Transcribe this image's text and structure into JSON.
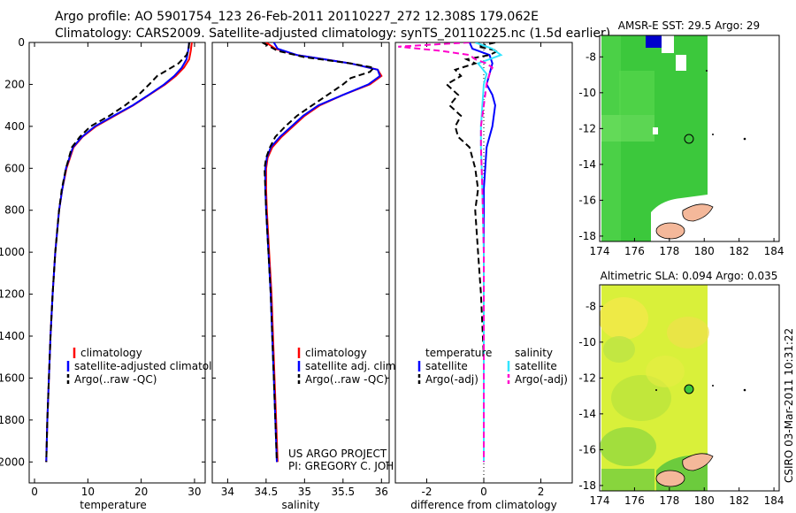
{
  "header": {
    "line1": "Argo profile: AO 5901754_123 26-Feb-2011 20110227_272 12.308S 179.062E",
    "line2": "Climatology: CARS2009. Satellite-adjusted climatology: synTS_20110225.nc (1.5d earlier)"
  },
  "colors": {
    "climatology": "#ff0000",
    "satellite": "#0000ff",
    "argo": "#000000",
    "sal_satellite": "#33e5ff",
    "sal_argo": "#ff00cc",
    "sst_green": "#3cc83c",
    "sst_land": "#f4b89a"
  },
  "footer": {
    "credit_line1": "US ARGO PROJECT",
    "credit_line2": "PI: GREGORY C. JOHNSON",
    "stamp": "CSIRO 03-Mar-2011 10:31:22"
  },
  "chart_data": [
    {
      "type": "line",
      "xlabel": "temperature",
      "xlim": [
        -1,
        32
      ],
      "ylim": [
        0,
        2100
      ],
      "xticks": [
        0,
        10,
        20,
        30
      ],
      "yticks": [
        0,
        200,
        400,
        600,
        800,
        1000,
        1200,
        1400,
        1600,
        1800,
        2000
      ],
      "legend": [
        "climatology",
        "satellite-adjusted climatology",
        "Argo(..raw -QC)"
      ],
      "series": [
        {
          "name": "climatology",
          "depth": [
            0,
            40,
            80,
            120,
            160,
            200,
            250,
            300,
            350,
            400,
            450,
            500,
            600,
            700,
            800,
            1000,
            1200,
            1400,
            1600,
            1800,
            2000
          ],
          "values": [
            29.5,
            29.3,
            29.0,
            28.0,
            26.5,
            24.5,
            21.5,
            18.5,
            15.0,
            11.5,
            9.0,
            7.3,
            6.0,
            5.2,
            4.6,
            3.9,
            3.4,
            3.0,
            2.7,
            2.4,
            2.2
          ]
        },
        {
          "name": "satellite",
          "depth": [
            0,
            40,
            80,
            120,
            160,
            200,
            250,
            300,
            350,
            400,
            450,
            500,
            600,
            700,
            800,
            1000,
            1200,
            1400,
            1600,
            1800,
            2000
          ],
          "values": [
            29.0,
            28.8,
            28.5,
            27.6,
            26.2,
            24.3,
            21.4,
            18.4,
            14.8,
            11.3,
            8.9,
            7.2,
            5.9,
            5.2,
            4.6,
            3.9,
            3.4,
            3.0,
            2.7,
            2.4,
            2.2
          ]
        },
        {
          "name": "Argo",
          "depth": [
            0,
            30,
            60,
            100,
            130,
            160,
            200,
            250,
            300,
            350,
            400,
            450,
            500,
            600,
            700,
            800,
            1000,
            1200,
            1400,
            1600,
            1800,
            2000
          ],
          "values": [
            29.0,
            28.9,
            28.5,
            27.0,
            25.0,
            23.0,
            21.5,
            19.5,
            17.0,
            14.0,
            10.5,
            8.5,
            7.0,
            5.9,
            5.1,
            4.6,
            3.9,
            3.4,
            3.0,
            2.7,
            2.4,
            2.2
          ]
        }
      ]
    },
    {
      "type": "line",
      "xlabel": "salinity",
      "xlim": [
        33.8,
        36.1
      ],
      "ylim": [
        0,
        2100
      ],
      "xticks": [
        34,
        34.5,
        35,
        35.5,
        36
      ],
      "legend": [
        "climatology",
        "satellite adj. clim.",
        "Argo(..raw -QC)"
      ],
      "series": [
        {
          "name": "climatology",
          "depth": [
            0,
            30,
            60,
            100,
            130,
            160,
            200,
            250,
            300,
            350,
            400,
            450,
            500,
            550,
            600,
            700,
            800,
            1000,
            1200,
            1400,
            1600,
            1800,
            2000
          ],
          "values": [
            34.5,
            34.62,
            34.9,
            35.6,
            35.95,
            36.0,
            35.85,
            35.5,
            35.2,
            35.0,
            34.85,
            34.7,
            34.58,
            34.52,
            34.5,
            34.5,
            34.51,
            34.54,
            34.57,
            34.59,
            34.61,
            34.63,
            34.65
          ]
        },
        {
          "name": "satellite",
          "depth": [
            0,
            30,
            60,
            100,
            130,
            160,
            200,
            250,
            300,
            350,
            400,
            450,
            500,
            550,
            600,
            700,
            800,
            1000,
            1200,
            1400,
            1600,
            1800,
            2000
          ],
          "values": [
            34.6,
            34.65,
            34.9,
            35.6,
            35.95,
            35.98,
            35.83,
            35.5,
            35.18,
            34.98,
            34.83,
            34.68,
            34.56,
            34.51,
            34.49,
            34.49,
            34.5,
            34.53,
            34.56,
            34.58,
            34.6,
            34.62,
            34.64
          ]
        },
        {
          "name": "Argo",
          "depth": [
            0,
            20,
            40,
            70,
            100,
            120,
            140,
            170,
            200,
            250,
            300,
            350,
            400,
            450,
            500,
            550,
            600,
            700,
            800,
            1000,
            1200,
            1400,
            1600,
            1800,
            2000
          ],
          "values": [
            34.45,
            34.55,
            34.65,
            35.0,
            35.6,
            35.9,
            35.85,
            35.6,
            35.5,
            35.3,
            35.1,
            34.9,
            34.75,
            34.62,
            34.55,
            34.5,
            34.48,
            34.49,
            34.5,
            34.53,
            34.56,
            34.58,
            34.6,
            34.62,
            34.64
          ]
        }
      ]
    },
    {
      "type": "line",
      "xlabel": "difference from climatology",
      "xlim": [
        -3.1,
        3.1
      ],
      "ylim": [
        0,
        2100
      ],
      "xticks": [
        -2,
        0,
        2
      ],
      "legend": [
        "temperature",
        "satellite",
        "Argo(-adj)",
        "salinity",
        "satellite",
        "Argo(-adj)"
      ],
      "series": [
        {
          "name": "temperature satellite",
          "depth": [
            0,
            30,
            60,
            100,
            150,
            200,
            250,
            300,
            400,
            500,
            700,
            1000,
            1500,
            2000
          ],
          "values": [
            -0.5,
            -0.4,
            0.2,
            0.3,
            0.2,
            0.1,
            0.3,
            0.4,
            0.3,
            0.1,
            0.0,
            0.0,
            0.0,
            0.0
          ]
        },
        {
          "name": "temperature Argo",
          "depth": [
            0,
            20,
            40,
            60,
            80,
            100,
            130,
            160,
            200,
            250,
            300,
            350,
            400,
            450,
            500,
            600,
            700,
            800,
            1000,
            1200,
            1500,
            1800,
            2000
          ],
          "values": [
            0.4,
            -0.2,
            0.5,
            0.2,
            -0.6,
            -0.3,
            -1.0,
            -0.8,
            -1.3,
            -0.9,
            -1.2,
            -0.8,
            -1.0,
            -0.9,
            -0.5,
            -0.3,
            -0.2,
            -0.3,
            -0.2,
            -0.1,
            0.0,
            0.0,
            0.0
          ]
        },
        {
          "name": "salinity satellite",
          "depth": [
            0,
            30,
            60,
            100,
            150,
            200,
            300,
            400,
            500,
            700,
            1000,
            1500,
            2000
          ],
          "values": [
            -0.3,
            0.3,
            0.6,
            -0.2,
            0.1,
            0.0,
            -0.05,
            -0.1,
            -0.1,
            -0.05,
            0.0,
            0.0,
            0.0
          ]
        },
        {
          "name": "salinity Argo",
          "depth": [
            0,
            20,
            40,
            60,
            80,
            100,
            120,
            150,
            200,
            300,
            400,
            500,
            700,
            1000,
            1500,
            2000
          ],
          "values": [
            -0.5,
            -3.0,
            -1.5,
            -0.5,
            -0.3,
            0.1,
            0.3,
            0.2,
            0.1,
            0.0,
            -0.1,
            -0.1,
            -0.05,
            0.0,
            0.0,
            0.0
          ]
        }
      ]
    },
    {
      "type": "heatmap",
      "title": "AMSR-E SST: 29.5  Argo: 29",
      "xlim": [
        174,
        184.3
      ],
      "ylim": [
        -18.3,
        -6.8
      ],
      "xticks": [
        174,
        176,
        178,
        180,
        182,
        184
      ],
      "yticks": [
        -8,
        -10,
        -12,
        -14,
        -16,
        -18
      ]
    },
    {
      "type": "heatmap",
      "title": "Altimetric SLA: 0.094  Argo: 0.035",
      "xlim": [
        174,
        184.3
      ],
      "ylim": [
        -18.3,
        -6.8
      ],
      "xticks": [
        174,
        176,
        178,
        180,
        182,
        184
      ],
      "yticks": [
        -8,
        -10,
        -12,
        -14,
        -16,
        -18
      ]
    }
  ]
}
